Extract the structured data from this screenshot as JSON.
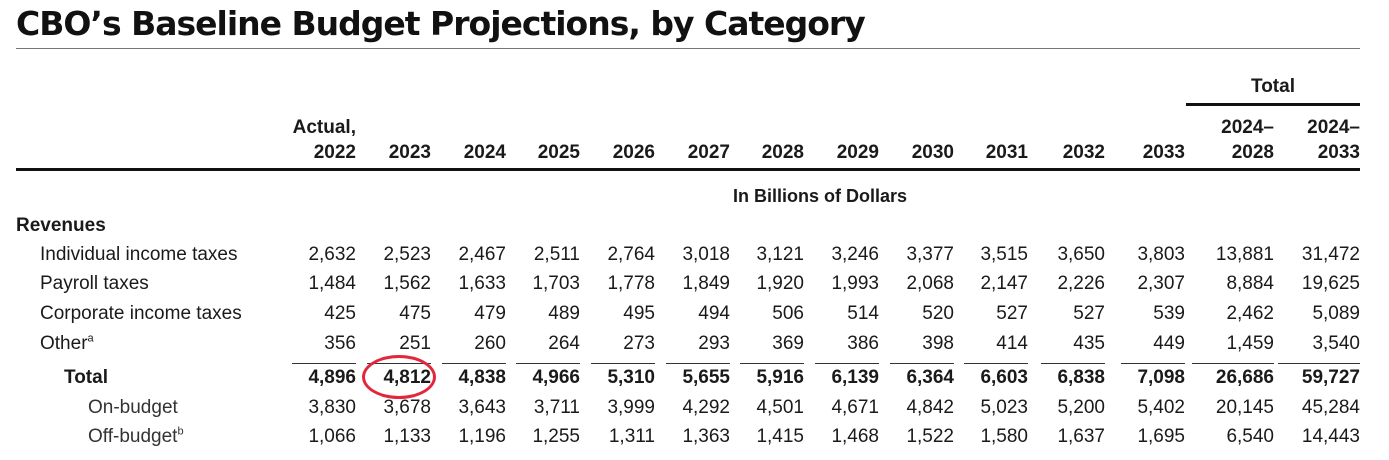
{
  "title": "CBO’s Baseline Budget Projections, by Category",
  "total_group_label": "Total",
  "columns": [
    {
      "line1": "Actual,",
      "line2": "2022"
    },
    {
      "line1": "",
      "line2": "2023"
    },
    {
      "line1": "",
      "line2": "2024"
    },
    {
      "line1": "",
      "line2": "2025"
    },
    {
      "line1": "",
      "line2": "2026"
    },
    {
      "line1": "",
      "line2": "2027"
    },
    {
      "line1": "",
      "line2": "2028"
    },
    {
      "line1": "",
      "line2": "2029"
    },
    {
      "line1": "",
      "line2": "2030"
    },
    {
      "line1": "",
      "line2": "2031"
    },
    {
      "line1": "",
      "line2": "2032"
    },
    {
      "line1": "",
      "line2": "2033"
    },
    {
      "line1": "2024–",
      "line2": "2028"
    },
    {
      "line1": "2024–",
      "line2": "2033"
    }
  ],
  "units": "In Billions of Dollars",
  "section": "Revenues",
  "rows": [
    {
      "label": "Individual income taxes",
      "sup": "",
      "bold": false,
      "indent": 1,
      "values": [
        "2,632",
        "2,523",
        "2,467",
        "2,511",
        "2,764",
        "3,018",
        "3,121",
        "3,246",
        "3,377",
        "3,515",
        "3,650",
        "3,803",
        "13,881",
        "31,472"
      ]
    },
    {
      "label": "Payroll taxes",
      "sup": "",
      "bold": false,
      "indent": 1,
      "values": [
        "1,484",
        "1,562",
        "1,633",
        "1,703",
        "1,778",
        "1,849",
        "1,920",
        "1,993",
        "2,068",
        "2,147",
        "2,226",
        "2,307",
        "8,884",
        "19,625"
      ]
    },
    {
      "label": "Corporate income taxes",
      "sup": "",
      "bold": false,
      "indent": 1,
      "values": [
        "425",
        "475",
        "479",
        "489",
        "495",
        "494",
        "506",
        "514",
        "520",
        "527",
        "527",
        "539",
        "2,462",
        "5,089"
      ]
    },
    {
      "label": "Other",
      "sup": "a",
      "bold": false,
      "indent": 1,
      "values": [
        "356",
        "251",
        "260",
        "264",
        "273",
        "293",
        "369",
        "386",
        "398",
        "414",
        "435",
        "449",
        "1,459",
        "3,540"
      ]
    },
    {
      "label": "Total",
      "sup": "",
      "bold": true,
      "indent": 2,
      "values": [
        "4,896",
        "4,812",
        "4,838",
        "4,966",
        "5,310",
        "5,655",
        "5,916",
        "6,139",
        "6,364",
        "6,603",
        "6,838",
        "7,098",
        "26,686",
        "59,727"
      ]
    },
    {
      "label": "On-budget",
      "sup": "",
      "bold": false,
      "indent": 3,
      "values": [
        "3,830",
        "3,678",
        "3,643",
        "3,711",
        "3,999",
        "4,292",
        "4,501",
        "4,671",
        "4,842",
        "5,023",
        "5,200",
        "5,402",
        "20,145",
        "45,284"
      ]
    },
    {
      "label": "Off-budget",
      "sup": "b",
      "bold": false,
      "indent": 3,
      "values": [
        "1,066",
        "1,133",
        "1,196",
        "1,255",
        "1,311",
        "1,363",
        "1,415",
        "1,468",
        "1,522",
        "1,580",
        "1,637",
        "1,695",
        "6,540",
        "14,443"
      ]
    }
  ],
  "highlight_color": "#e3263b"
}
